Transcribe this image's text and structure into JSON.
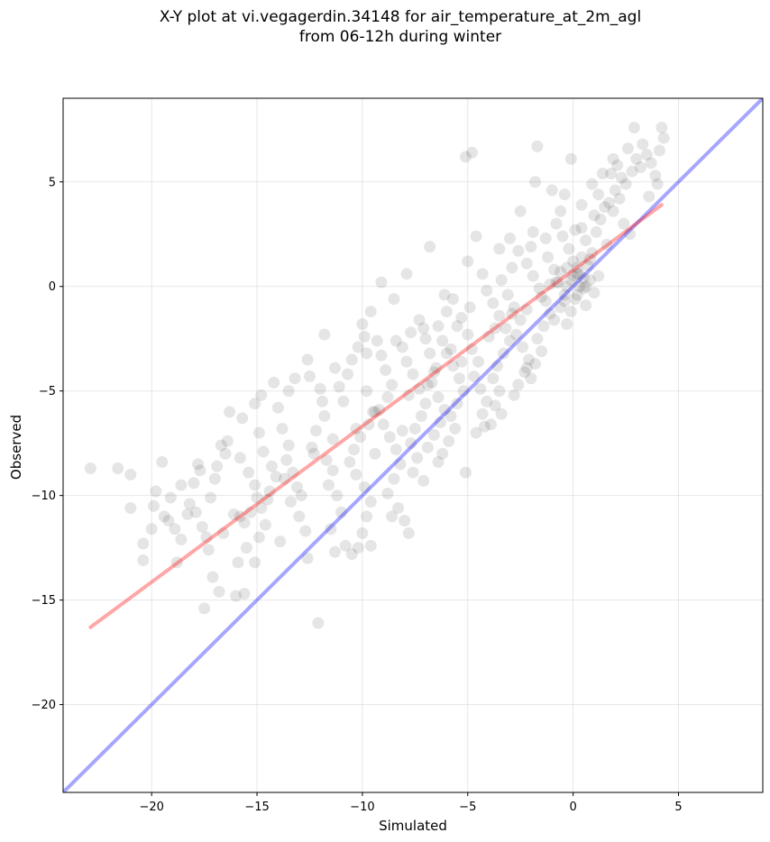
{
  "chart_data": {
    "type": "scatter",
    "title_line1": "X-Y plot at vi.vegagerdin.34148 for air_temperature_at_2m_agl",
    "title_line2": "from 06-12h during winter",
    "xlabel": "Simulated",
    "ylabel": "Observed",
    "xlim": [
      -24.2,
      9.0
    ],
    "ylim": [
      -24.2,
      9.0
    ],
    "xticks": [
      -20,
      -15,
      -10,
      -5,
      0,
      5
    ],
    "yticks": [
      -20,
      -15,
      -10,
      -5,
      0,
      5
    ],
    "xtick_labels": [
      "−20",
      "−15",
      "−10",
      "−5",
      "0",
      "5"
    ],
    "ytick_labels": [
      "−20",
      "−15",
      "−10",
      "−5",
      "0",
      "5"
    ],
    "grid": true,
    "point_color": "#000000",
    "point_alpha": 0.1,
    "lines": [
      {
        "color": "#0000ff",
        "alpha": 0.35,
        "x": [
          -24.2,
          9.0
        ],
        "y": [
          -24.2,
          9.0
        ]
      },
      {
        "color": "#ff0000",
        "alpha": 0.35,
        "x": [
          -22.9,
          4.2
        ],
        "y": [
          -16.3,
          3.9
        ]
      }
    ],
    "points": [
      [
        -22.9,
        -8.7
      ],
      [
        -21.6,
        -8.7
      ],
      [
        -21.0,
        -9.0
      ],
      [
        -21.0,
        -10.6
      ],
      [
        -20.4,
        -12.3
      ],
      [
        -20.4,
        -13.1
      ],
      [
        -19.5,
        -8.4
      ],
      [
        -19.8,
        -9.8
      ],
      [
        -19.9,
        -10.5
      ],
      [
        -19.4,
        -11.0
      ],
      [
        -19.2,
        -11.2
      ],
      [
        -18.9,
        -11.6
      ],
      [
        -18.6,
        -12.1
      ],
      [
        -18.8,
        -13.2
      ],
      [
        -18.2,
        -10.4
      ],
      [
        -18.0,
        -9.4
      ],
      [
        -17.9,
        -10.8
      ],
      [
        -17.6,
        -11.5
      ],
      [
        -17.4,
        -12.0
      ],
      [
        -17.2,
        -10.1
      ],
      [
        -17.0,
        -9.2
      ],
      [
        -16.9,
        -8.6
      ],
      [
        -16.7,
        -7.6
      ],
      [
        -16.4,
        -7.4
      ],
      [
        -17.1,
        -13.9
      ],
      [
        -16.8,
        -14.6
      ],
      [
        -17.5,
        -15.4
      ],
      [
        -16.0,
        -14.8
      ],
      [
        -15.6,
        -14.7
      ],
      [
        -16.3,
        -6.0
      ],
      [
        -15.8,
        -8.2
      ],
      [
        -15.4,
        -8.9
      ],
      [
        -15.1,
        -9.5
      ],
      [
        -15.0,
        -10.1
      ],
      [
        -15.3,
        -10.8
      ],
      [
        -15.6,
        -11.3
      ],
      [
        -15.5,
        -12.5
      ],
      [
        -15.1,
        -13.2
      ],
      [
        -14.9,
        -12.0
      ],
      [
        -14.6,
        -11.4
      ],
      [
        -14.8,
        -10.6
      ],
      [
        -14.4,
        -9.8
      ],
      [
        -14.1,
        -9.1
      ],
      [
        -14.3,
        -8.6
      ],
      [
        -14.7,
        -7.9
      ],
      [
        -14.9,
        -7.0
      ],
      [
        -15.1,
        -5.6
      ],
      [
        -14.2,
        -4.6
      ],
      [
        -14.0,
        -5.8
      ],
      [
        -13.8,
        -6.8
      ],
      [
        -13.5,
        -7.6
      ],
      [
        -13.6,
        -8.3
      ],
      [
        -13.3,
        -8.9
      ],
      [
        -13.1,
        -9.6
      ],
      [
        -13.4,
        -10.3
      ],
      [
        -13.0,
        -11.0
      ],
      [
        -12.7,
        -11.7
      ],
      [
        -12.6,
        -13.0
      ],
      [
        -12.1,
        -16.1
      ],
      [
        -12.5,
        -4.3
      ],
      [
        -12.0,
        -4.9
      ],
      [
        -11.9,
        -5.5
      ],
      [
        -11.8,
        -6.2
      ],
      [
        -12.2,
        -6.9
      ],
      [
        -12.4,
        -7.7
      ],
      [
        -11.7,
        -8.3
      ],
      [
        -11.4,
        -8.8
      ],
      [
        -11.6,
        -9.5
      ],
      [
        -11.2,
        -10.0
      ],
      [
        -11.0,
        -10.8
      ],
      [
        -11.5,
        -11.6
      ],
      [
        -10.8,
        -12.4
      ],
      [
        -10.5,
        -12.8
      ],
      [
        -10.2,
        -12.5
      ],
      [
        -10.0,
        -11.8
      ],
      [
        -9.8,
        -11.0
      ],
      [
        -9.6,
        -10.3
      ],
      [
        -9.9,
        -9.6
      ],
      [
        -10.3,
        -9.0
      ],
      [
        -10.6,
        -8.4
      ],
      [
        -10.4,
        -7.8
      ],
      [
        -10.1,
        -7.2
      ],
      [
        -9.7,
        -6.6
      ],
      [
        -9.5,
        -6.0
      ],
      [
        -10.9,
        -5.5
      ],
      [
        -11.1,
        -4.8
      ],
      [
        -10.7,
        -4.2
      ],
      [
        -10.5,
        -3.5
      ],
      [
        -10.2,
        -2.9
      ],
      [
        -9.9,
        -2.4
      ],
      [
        -10.0,
        -1.8
      ],
      [
        -9.3,
        -2.6
      ],
      [
        -9.1,
        -3.3
      ],
      [
        -8.9,
        -4.0
      ],
      [
        -8.6,
        -4.7
      ],
      [
        -8.8,
        -5.3
      ],
      [
        -9.2,
        -5.9
      ],
      [
        -9.0,
        -6.6
      ],
      [
        -8.7,
        -7.2
      ],
      [
        -8.4,
        -7.8
      ],
      [
        -8.2,
        -8.5
      ],
      [
        -8.5,
        -9.2
      ],
      [
        -8.8,
        -9.9
      ],
      [
        -8.3,
        -10.6
      ],
      [
        -8.0,
        -11.2
      ],
      [
        -7.8,
        -11.8
      ],
      [
        -8.6,
        -11.0
      ],
      [
        -7.6,
        -8.9
      ],
      [
        -7.4,
        -8.2
      ],
      [
        -7.7,
        -7.5
      ],
      [
        -7.5,
        -6.8
      ],
      [
        -7.2,
        -6.2
      ],
      [
        -7.0,
        -5.6
      ],
      [
        -7.3,
        -4.9
      ],
      [
        -7.6,
        -4.2
      ],
      [
        -7.9,
        -3.6
      ],
      [
        -8.1,
        -2.9
      ],
      [
        -7.7,
        -2.2
      ],
      [
        -7.3,
        -1.6
      ],
      [
        -7.0,
        -2.5
      ],
      [
        -6.8,
        -3.2
      ],
      [
        -6.5,
        -3.9
      ],
      [
        -6.7,
        -4.6
      ],
      [
        -6.4,
        -5.3
      ],
      [
        -6.1,
        -5.9
      ],
      [
        -6.3,
        -6.5
      ],
      [
        -6.6,
        -7.1
      ],
      [
        -6.9,
        -7.7
      ],
      [
        -6.2,
        -8.0
      ],
      [
        -5.9,
        -7.4
      ],
      [
        -5.6,
        -6.8
      ],
      [
        -5.8,
        -6.2
      ],
      [
        -5.5,
        -5.6
      ],
      [
        -5.2,
        -5.0
      ],
      [
        -5.4,
        -4.4
      ],
      [
        -5.7,
        -3.8
      ],
      [
        -6.0,
        -3.2
      ],
      [
        -6.2,
        -2.6
      ],
      [
        -6.4,
        -1.9
      ],
      [
        -6.0,
        -1.2
      ],
      [
        -5.7,
        -0.6
      ],
      [
        -5.3,
        -1.5
      ],
      [
        -5.0,
        -2.3
      ],
      [
        -4.8,
        -3.0
      ],
      [
        -4.5,
        -3.6
      ],
      [
        -4.7,
        -4.3
      ],
      [
        -4.4,
        -4.9
      ],
      [
        -4.1,
        -5.5
      ],
      [
        -4.3,
        -6.1
      ],
      [
        -3.9,
        -6.6
      ],
      [
        -4.6,
        -7.0
      ],
      [
        -3.7,
        -5.7
      ],
      [
        -3.5,
        -5.0
      ],
      [
        -3.8,
        -4.4
      ],
      [
        -3.6,
        -3.8
      ],
      [
        -3.3,
        -3.2
      ],
      [
        -3.0,
        -2.6
      ],
      [
        -3.2,
        -2.0
      ],
      [
        -3.5,
        -1.4
      ],
      [
        -3.8,
        -0.8
      ],
      [
        -4.1,
        -0.2
      ],
      [
        -3.4,
        0.3
      ],
      [
        -3.1,
        -0.4
      ],
      [
        -2.8,
        -1.0
      ],
      [
        -2.5,
        -1.6
      ],
      [
        -2.7,
        -2.3
      ],
      [
        -2.4,
        -2.9
      ],
      [
        -2.1,
        -3.5
      ],
      [
        -2.3,
        -4.1
      ],
      [
        -2.6,
        -4.7
      ],
      [
        -2.0,
        -4.4
      ],
      [
        -1.8,
        -3.7
      ],
      [
        -1.5,
        -3.1
      ],
      [
        -1.7,
        -2.5
      ],
      [
        -1.4,
        -1.9
      ],
      [
        -1.1,
        -1.3
      ],
      [
        -1.3,
        -0.7
      ],
      [
        -1.6,
        -0.1
      ],
      [
        -1.9,
        0.5
      ],
      [
        -2.2,
        1.1
      ],
      [
        -2.6,
        1.7
      ],
      [
        -3.0,
        2.3
      ],
      [
        -1.2,
        1.4
      ],
      [
        -0.9,
        0.8
      ],
      [
        -0.7,
        0.2
      ],
      [
        -0.4,
        -0.4
      ],
      [
        -0.6,
        -1.0
      ],
      [
        -0.9,
        -1.6
      ],
      [
        -0.3,
        -1.8
      ],
      [
        -0.1,
        -1.2
      ],
      [
        0.1,
        -0.6
      ],
      [
        0.3,
        0.0
      ],
      [
        0.2,
        0.6
      ],
      [
        0.0,
        1.2
      ],
      [
        -0.2,
        1.8
      ],
      [
        -0.5,
        2.4
      ],
      [
        -0.8,
        3.0
      ],
      [
        -0.3,
        0.9
      ],
      [
        0.5,
        0.4
      ],
      [
        0.7,
        1.0
      ],
      [
        0.9,
        1.6
      ],
      [
        0.6,
        2.2
      ],
      [
        0.4,
        2.8
      ],
      [
        0.8,
        0.3
      ],
      [
        1.0,
        -0.3
      ],
      [
        0.6,
        -0.9
      ],
      [
        0.2,
        -0.4
      ],
      [
        -0.1,
        0.3
      ],
      [
        0.4,
        1.4
      ],
      [
        1.1,
        2.6
      ],
      [
        1.3,
        3.2
      ],
      [
        1.5,
        3.8
      ],
      [
        1.2,
        4.4
      ],
      [
        1.7,
        4.0
      ],
      [
        2.0,
        4.6
      ],
      [
        2.3,
        5.2
      ],
      [
        2.1,
        5.8
      ],
      [
        1.8,
        5.4
      ],
      [
        2.5,
        4.9
      ],
      [
        2.8,
        5.5
      ],
      [
        3.0,
        6.1
      ],
      [
        3.2,
        5.7
      ],
      [
        3.5,
        6.3
      ],
      [
        3.3,
        6.8
      ],
      [
        3.7,
        5.9
      ],
      [
        3.9,
        5.3
      ],
      [
        4.1,
        6.5
      ],
      [
        4.3,
        7.1
      ],
      [
        2.9,
        7.6
      ],
      [
        4.2,
        7.6
      ],
      [
        2.6,
        6.6
      ],
      [
        1.9,
        6.1
      ],
      [
        -0.1,
        6.1
      ],
      [
        -1.7,
        6.7
      ],
      [
        -5.1,
        6.2
      ],
      [
        -4.8,
        6.4
      ],
      [
        -1.8,
        5.0
      ],
      [
        -2.5,
        3.6
      ],
      [
        -1.9,
        2.6
      ],
      [
        -0.4,
        4.4
      ],
      [
        0.9,
        4.9
      ],
      [
        1.4,
        5.4
      ],
      [
        0.4,
        3.9
      ],
      [
        1.6,
        2.0
      ],
      [
        2.4,
        3.0
      ],
      [
        2.7,
        2.5
      ],
      [
        3.6,
        4.3
      ],
      [
        4.0,
        4.9
      ],
      [
        -1.0,
        4.6
      ],
      [
        -0.6,
        3.6
      ],
      [
        -4.6,
        2.4
      ],
      [
        -3.5,
        1.8
      ],
      [
        -5.0,
        1.2
      ],
      [
        -4.3,
        0.6
      ],
      [
        -6.8,
        1.9
      ],
      [
        -7.9,
        0.6
      ],
      [
        -9.1,
        0.2
      ],
      [
        -8.5,
        -0.6
      ],
      [
        -9.6,
        -1.2
      ],
      [
        -11.8,
        -2.3
      ],
      [
        -12.6,
        -3.5
      ],
      [
        -13.5,
        -5.0
      ],
      [
        -14.8,
        -5.2
      ],
      [
        -15.7,
        -6.3
      ],
      [
        -16.5,
        -8.0
      ],
      [
        -17.8,
        -8.5
      ],
      [
        -18.6,
        -9.5
      ],
      [
        -19.1,
        -10.1
      ],
      [
        -16.1,
        -10.9
      ],
      [
        -16.6,
        -11.8
      ],
      [
        -15.9,
        -13.2
      ],
      [
        -13.9,
        -12.2
      ],
      [
        -12.9,
        -10.0
      ],
      [
        -11.4,
        -7.3
      ],
      [
        -9.4,
        -8.0
      ],
      [
        -8.1,
        -6.9
      ],
      [
        -6.9,
        -4.7
      ],
      [
        -5.3,
        -3.6
      ],
      [
        -4.0,
        -2.4
      ],
      [
        -2.9,
        -1.3
      ],
      [
        -1.5,
        -0.5
      ],
      [
        -0.8,
        0.2
      ],
      [
        0.2,
        0.9
      ],
      [
        0.5,
        -0.1
      ],
      [
        0.0,
        0.5
      ],
      [
        -0.3,
        0.0
      ],
      [
        0.8,
        1.3
      ],
      [
        0.3,
        0.6
      ],
      [
        -0.6,
        0.7
      ],
      [
        -1.1,
        0.1
      ],
      [
        0.6,
        0.0
      ],
      [
        1.2,
        0.5
      ],
      [
        -0.4,
        -0.7
      ],
      [
        -2.2,
        -1.1
      ],
      [
        -3.7,
        -2.0
      ],
      [
        -5.8,
        -3.0
      ],
      [
        -6.6,
        -4.1
      ],
      [
        -7.8,
        -5.2
      ],
      [
        -9.4,
        -6.0
      ],
      [
        -10.3,
        -6.8
      ],
      [
        -12.3,
        -8.0
      ],
      [
        -13.7,
        -9.2
      ],
      [
        -14.5,
        -10.2
      ],
      [
        -15.8,
        -11.0
      ],
      [
        -17.3,
        -12.6
      ],
      [
        -20.0,
        -11.6
      ],
      [
        -18.3,
        -10.9
      ],
      [
        -17.7,
        -8.8
      ],
      [
        -13.2,
        -4.4
      ],
      [
        -11.3,
        -3.9
      ],
      [
        -9.8,
        -3.2
      ],
      [
        -8.4,
        -2.6
      ],
      [
        -7.1,
        -2.0
      ],
      [
        -6.1,
        -0.4
      ],
      [
        -5.5,
        -1.9
      ],
      [
        -4.9,
        -1.0
      ],
      [
        -2.9,
        0.9
      ],
      [
        -2.0,
        1.9
      ],
      [
        -1.3,
        2.3
      ],
      [
        0.1,
        2.7
      ],
      [
        1.0,
        3.4
      ],
      [
        1.9,
        3.6
      ],
      [
        2.2,
        4.2
      ],
      [
        -9.6,
        -12.4
      ],
      [
        -11.3,
        -12.7
      ],
      [
        -9.8,
        -5.0
      ],
      [
        -7.1,
        -9.3
      ],
      [
        -6.4,
        -8.4
      ],
      [
        -5.1,
        -8.9
      ],
      [
        -4.2,
        -6.7
      ],
      [
        -3.4,
        -6.1
      ],
      [
        -2.8,
        -5.2
      ],
      [
        -2.2,
        -3.9
      ]
    ]
  }
}
